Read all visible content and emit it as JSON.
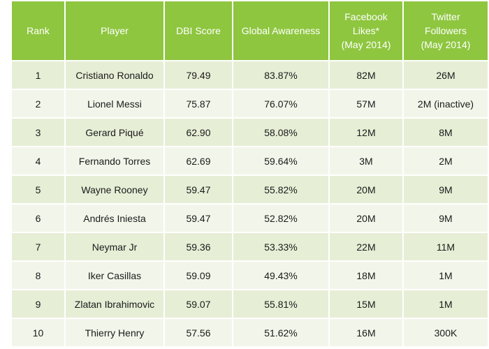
{
  "table": {
    "headers": {
      "rank": "Rank",
      "player": "Player",
      "dbi": "DBI Score",
      "awareness": "Global Awareness",
      "facebook": [
        "Facebook",
        "Likes*",
        "(May 2014)"
      ],
      "twitter": [
        "Twitter",
        "Followers",
        "(May 2014)"
      ]
    },
    "rows": [
      {
        "rank": "1",
        "player": "Cristiano Ronaldo",
        "dbi": "79.49",
        "awareness": "83.87%",
        "facebook": "82M",
        "twitter": "26M"
      },
      {
        "rank": "2",
        "player": "Lionel Messi",
        "dbi": "75.87",
        "awareness": "76.07%",
        "facebook": "57M",
        "twitter": "2M (inactive)"
      },
      {
        "rank": "3",
        "player": "Gerard Piqué",
        "dbi": "62.90",
        "awareness": "58.08%",
        "facebook": "12M",
        "twitter": "8M"
      },
      {
        "rank": "4",
        "player": "Fernando Torres",
        "dbi": "62.69",
        "awareness": "59.64%",
        "facebook": "3M",
        "twitter": "2M"
      },
      {
        "rank": "5",
        "player": "Wayne Rooney",
        "dbi": "59.47",
        "awareness": "55.82%",
        "facebook": "20M",
        "twitter": "9M"
      },
      {
        "rank": "6",
        "player": "Andrés Iniesta",
        "dbi": "59.47",
        "awareness": "52.82%",
        "facebook": "20M",
        "twitter": "9M"
      },
      {
        "rank": "7",
        "player": "Neymar Jr",
        "dbi": "59.36",
        "awareness": "53.33%",
        "facebook": "22M",
        "twitter": "11M"
      },
      {
        "rank": "8",
        "player": "Iker Casillas",
        "dbi": "59.09",
        "awareness": "49.43%",
        "facebook": "18M",
        "twitter": "1M"
      },
      {
        "rank": "9",
        "player": "Zlatan Ibrahimovic",
        "dbi": "59.07",
        "awareness": "55.81%",
        "facebook": "15M",
        "twitter": "1M"
      },
      {
        "rank": "10",
        "player": "Thierry Henry",
        "dbi": "57.56",
        "awareness": "51.62%",
        "facebook": "16M",
        "twitter": "300K"
      }
    ]
  },
  "colors": {
    "header": "#8ec63f",
    "row_odd": "#e6eed6",
    "row_even": "#f2f6ea"
  }
}
